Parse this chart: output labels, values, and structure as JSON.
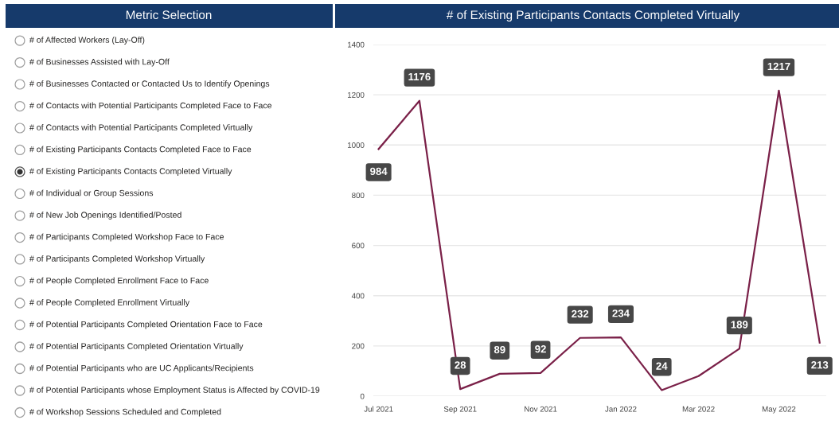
{
  "chart_data": [
    {
      "type": "other",
      "title": "Metric Selection",
      "annotations": [
        "# of Affected Workers (Lay-Off)",
        "# of Businesses Assisted with Lay-Off",
        "# of Businesses Contacted or Contacted Us to Identify Openings",
        "# of Contacts with Potential Participants Completed Face to Face",
        "# of Contacts with Potential Participants Completed Virtually",
        "# of Existing Participants Contacts Completed Face to Face",
        "# of Existing Participants Contacts Completed Virtually",
        "# of Individual or Group Sessions",
        "# of New Job Openings Identified/Posted",
        "# of Participants Completed Workshop Face to Face",
        "# of Participants Completed Workshop Virtually",
        "# of People Completed Enrollment Face to Face",
        "# of People Completed Enrollment Virtually",
        "# of Potential Participants Completed Orientation Face to Face",
        "# of Potential Participants Completed Orientation Virtually",
        "# of Potential Participants who are UC Applicants/Recipients",
        "# of Potential Participants whose Employment Status is Affected by COVID-19",
        "# of Workshop Sessions Scheduled and Completed"
      ]
    },
    {
      "type": "line",
      "title": "# of Existing Participants Contacts Completed Virtually",
      "x": [
        "2021-07",
        "2021-08",
        "2021-09",
        "2021-10",
        "2021-11",
        "2021-12",
        "2022-01",
        "2022-02",
        "2022-03",
        "2022-04",
        "2022-05",
        "2022-06"
      ],
      "values": [
        984,
        1176,
        28,
        89,
        92,
        232,
        234,
        24,
        80,
        189,
        1217,
        213
      ],
      "value_labels": [
        "984",
        "1176",
        "28",
        "89",
        "92",
        "232",
        "234",
        "24",
        null,
        "189",
        "1217",
        "213"
      ],
      "color": "#7a2048",
      "xlim": [
        "2021-06-27",
        "2022-06-06"
      ],
      "xticks": [
        {
          "value": "2021-07",
          "label": "Jul 2021"
        },
        {
          "value": "2021-09",
          "label": "Sep 2021"
        },
        {
          "value": "2021-11",
          "label": "Nov 2021"
        },
        {
          "value": "2022-01",
          "label": "Jan 2022"
        },
        {
          "value": "2022-03",
          "label": "Mar 2022"
        },
        {
          "value": "2022-05",
          "label": "May 2022"
        }
      ],
      "ylim": [
        0,
        1400
      ],
      "yticks": [
        0,
        200,
        400,
        600,
        800,
        1000,
        1200,
        1400
      ],
      "grid": "y"
    }
  ]
}
